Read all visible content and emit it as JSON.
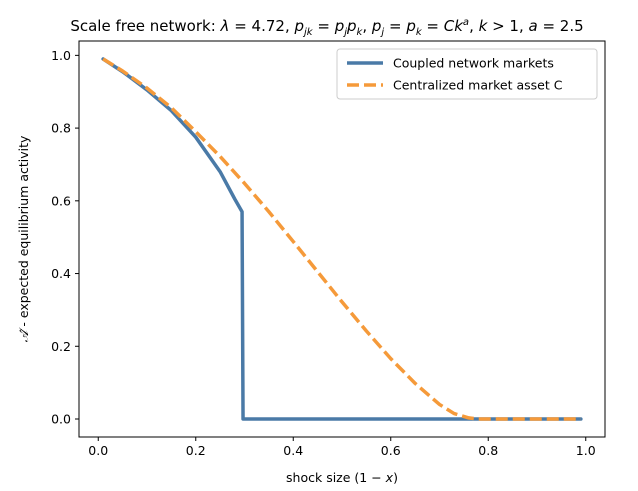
{
  "chart_data": {
    "type": "line",
    "title": "Scale free network: λ = 4.72, p_jk = p_j p_k,  p_j = p_k = Ck^a, k > 1, a = 2.5",
    "title_parts": {
      "prefix": "Scale free network: ",
      "lambda": "λ",
      "lambda_eq": " = 4.72, ",
      "p": "p",
      "jk": "jk",
      "pj": "j",
      "pk": "k",
      "eq1": " = ",
      "sep": ",  ",
      "eq2": " = ",
      "eq3": " = ",
      "C": "C",
      "k": "k",
      "a": "a",
      "tail": ", ",
      "k_gt": "k",
      "gt1": " > 1, ",
      "a2": "a",
      "eq_25": " = 2.5"
    },
    "xlabel": "shock size (1 − x)",
    "xlabel_parts": {
      "text": "shock size (1 − ",
      "var": "x",
      "close": ")"
    },
    "ylabel": "Â - expected equilibrium activity",
    "ylabel_parts": {
      "sym": "𝒜̂",
      "text": " - expected equilibrium activity"
    },
    "xlim": [
      -0.0395,
      1.0395
    ],
    "ylim": [
      -0.0495,
      1.0395
    ],
    "x_ticks": [
      0.0,
      0.2,
      0.4,
      0.6,
      0.8,
      1.0
    ],
    "x_tick_labels": [
      "0.0",
      "0.2",
      "0.4",
      "0.6",
      "0.8",
      "1.0"
    ],
    "y_ticks": [
      0.0,
      0.2,
      0.4,
      0.6,
      0.8,
      1.0
    ],
    "y_tick_labels": [
      "0.0",
      "0.2",
      "0.4",
      "0.6",
      "0.8",
      "1.0"
    ],
    "grid": false,
    "legend_position": "top-right",
    "series": [
      {
        "name": "Coupled network markets",
        "color": "#4a7aa7",
        "style": "solid",
        "x": [
          0.01,
          0.05,
          0.1,
          0.15,
          0.2,
          0.25,
          0.28,
          0.295,
          0.297,
          0.3,
          0.4,
          0.5,
          0.6,
          0.7,
          0.8,
          0.9,
          0.99
        ],
        "y": [
          0.99,
          0.955,
          0.905,
          0.848,
          0.775,
          0.68,
          0.605,
          0.57,
          0.0,
          0.0,
          0.0,
          0.0,
          0.0,
          0.0,
          0.0,
          0.0,
          0.0
        ]
      },
      {
        "name": "Centralized market asset C",
        "color": "#f59a3a",
        "style": "dashed",
        "x": [
          0.01,
          0.05,
          0.1,
          0.15,
          0.2,
          0.25,
          0.3,
          0.35,
          0.4,
          0.45,
          0.5,
          0.55,
          0.6,
          0.65,
          0.7,
          0.73,
          0.76,
          0.78,
          0.8,
          0.9,
          0.99
        ],
        "y": [
          0.99,
          0.957,
          0.91,
          0.856,
          0.79,
          0.722,
          0.648,
          0.57,
          0.488,
          0.405,
          0.322,
          0.242,
          0.166,
          0.098,
          0.04,
          0.015,
          0.003,
          0.0,
          0.0,
          0.0,
          0.0
        ]
      }
    ]
  }
}
